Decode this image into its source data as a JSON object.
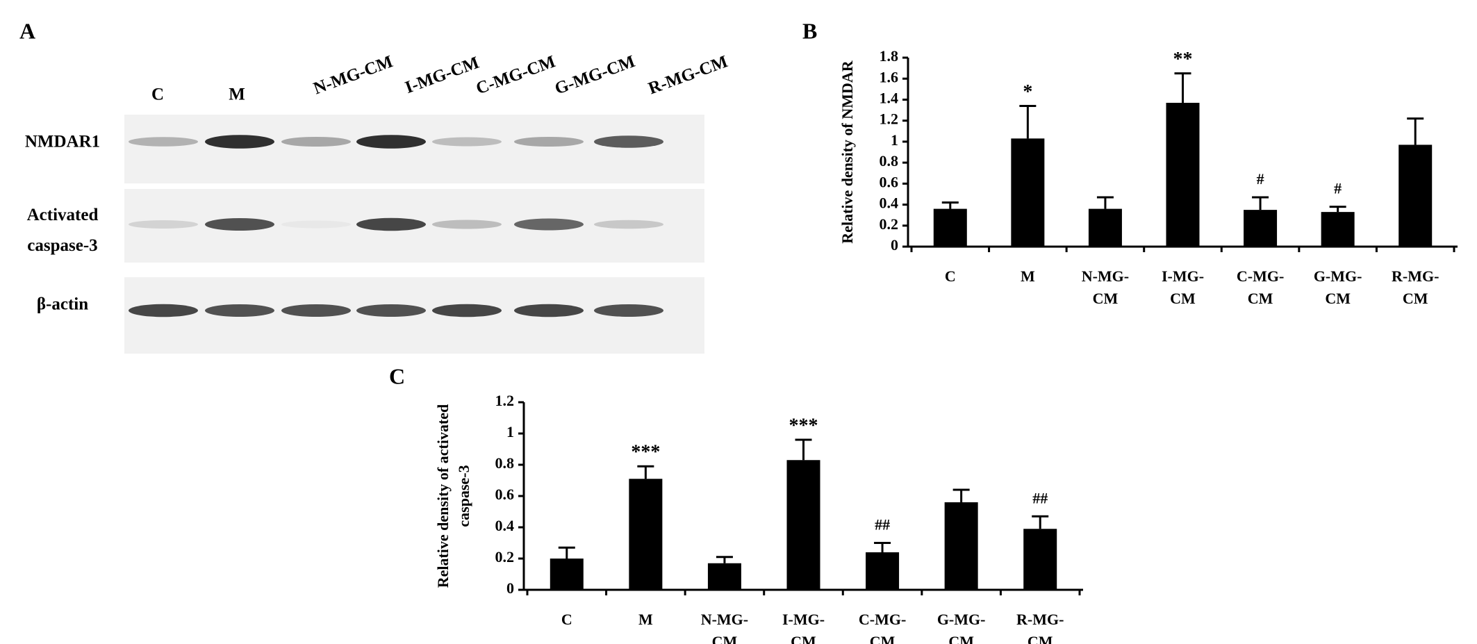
{
  "blot": {
    "label": "A",
    "lanes": [
      "C",
      "M",
      "N-MG-CM",
      "I-MG-CM",
      "C-MG-CM",
      "G-MG-CM",
      "R-MG-CM"
    ],
    "rows": [
      "NMDAR1",
      "Activated caspase-3",
      "β-actin"
    ]
  },
  "chart_data": [
    {
      "type": "bar",
      "label": "B",
      "ylabel": "Relative density of NMDAR",
      "categories": [
        "C",
        "M",
        "N-MG-CM",
        "I-MG-CM",
        "C-MG-CM",
        "G-MG-CM",
        "R-MG-CM"
      ],
      "values": [
        0.36,
        1.03,
        0.36,
        1.37,
        0.35,
        0.33,
        0.97
      ],
      "errors": [
        0.06,
        0.31,
        0.11,
        0.28,
        0.12,
        0.05,
        0.25
      ],
      "annotations": [
        null,
        "*",
        null,
        "**",
        "#",
        "#",
        null
      ],
      "color": "#000000",
      "ylim": [
        0,
        1.8
      ],
      "yticks": [
        0,
        0.2,
        0.4,
        0.6,
        0.8,
        1,
        1.2,
        1.4,
        1.6,
        1.8
      ]
    },
    {
      "type": "bar",
      "label": "C",
      "ylabel": "Relative density of activated caspase-3",
      "categories": [
        "C",
        "M",
        "N-MG-CM",
        "I-MG-CM",
        "C-MG-CM",
        "G-MG-CM",
        "R-MG-CM"
      ],
      "values": [
        0.2,
        0.71,
        0.17,
        0.83,
        0.24,
        0.56,
        0.39
      ],
      "errors": [
        0.07,
        0.08,
        0.04,
        0.13,
        0.06,
        0.08,
        0.08
      ],
      "annotations": [
        null,
        "***",
        null,
        "***",
        "##",
        null,
        "##"
      ],
      "color": "#000000",
      "ylim": [
        0,
        1.2
      ],
      "yticks": [
        0,
        0.2,
        0.4,
        0.6,
        0.8,
        1,
        1.2
      ]
    }
  ]
}
